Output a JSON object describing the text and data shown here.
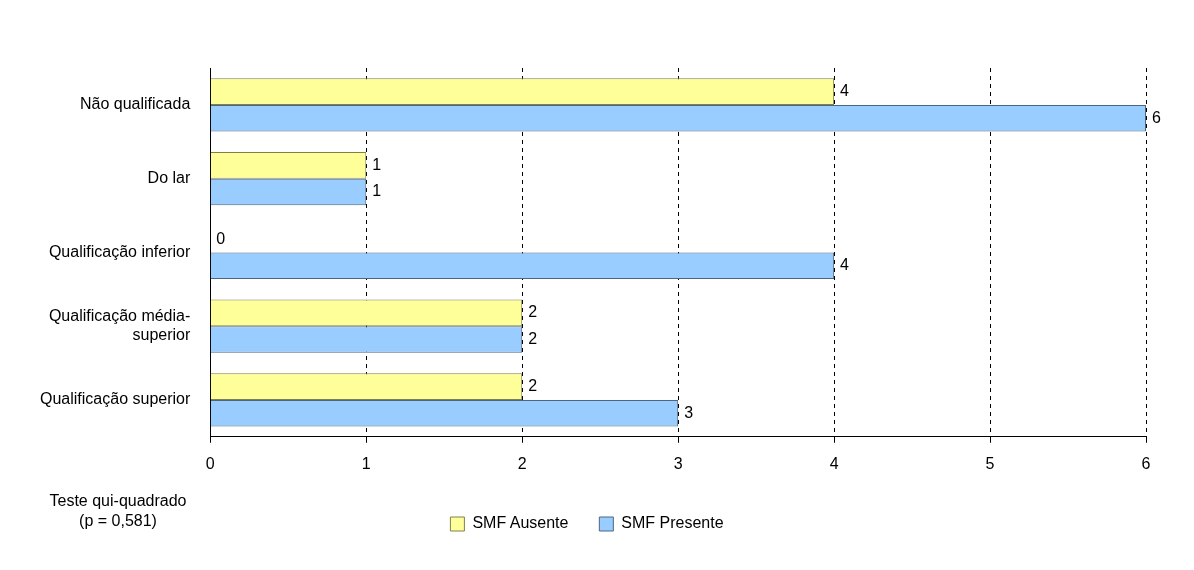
{
  "chart_data": {
    "type": "bar",
    "orientation": "horizontal",
    "categories": [
      "Não qualificada",
      "Do lar",
      "Qualificação inferior",
      "Qualificação média-superior",
      "Qualificação superior"
    ],
    "series": [
      {
        "name": "SMF Ausente",
        "color": "#ffff99",
        "values": [
          4,
          1,
          0,
          2,
          2
        ]
      },
      {
        "name": "SMF Presente",
        "color": "#99ccff",
        "values": [
          6,
          1,
          4,
          2,
          3
        ]
      }
    ],
    "xlim": [
      0,
      6
    ],
    "xticks": [
      0,
      1,
      2,
      3,
      4,
      5,
      6
    ],
    "grid": "x",
    "data_labels": true,
    "legend": "bottom",
    "annotations": [
      "Teste qui-quadrado\n(p = 0,581)"
    ]
  }
}
